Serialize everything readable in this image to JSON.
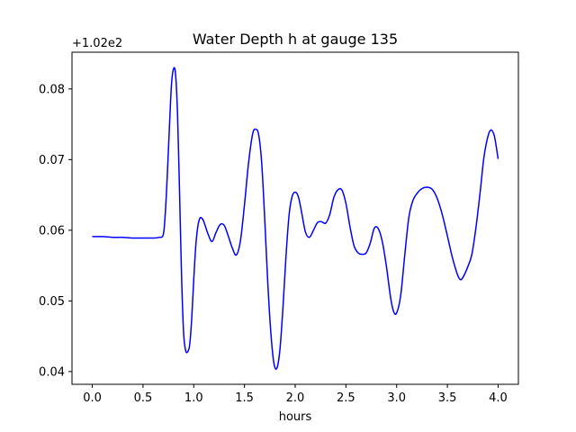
{
  "chart_data": {
    "type": "line",
    "title": "Water Depth h at gauge 135",
    "xlabel": "hours",
    "ylabel": "",
    "offset_label": "+1.02e2",
    "xlim": [
      -0.2,
      4.2
    ],
    "ylim": [
      0.0382,
      0.0852
    ],
    "xticks": [
      0.0,
      0.5,
      1.0,
      1.5,
      2.0,
      2.5,
      3.0,
      3.5,
      4.0
    ],
    "xtick_labels": [
      "0.0",
      "0.5",
      "1.0",
      "1.5",
      "2.0",
      "2.5",
      "3.0",
      "3.5",
      "4.0"
    ],
    "yticks": [
      0.04,
      0.05,
      0.06,
      0.07,
      0.08
    ],
    "ytick_labels": [
      "0.04",
      "0.05",
      "0.06",
      "0.07",
      "0.08"
    ],
    "grid": false,
    "line_color": "#0000ff",
    "series": [
      {
        "x": [
          0.0,
          0.1,
          0.2,
          0.3,
          0.4,
          0.5,
          0.6,
          0.66,
          0.7,
          0.72,
          0.74,
          0.76,
          0.78,
          0.8,
          0.82,
          0.84,
          0.86,
          0.88,
          0.9,
          0.92,
          0.94,
          0.96,
          0.98,
          1.0,
          1.02,
          1.04,
          1.06,
          1.08,
          1.1,
          1.14,
          1.18,
          1.22,
          1.26,
          1.3,
          1.34,
          1.38,
          1.42,
          1.46,
          1.5,
          1.54,
          1.58,
          1.61,
          1.64,
          1.67,
          1.7,
          1.73,
          1.76,
          1.79,
          1.82,
          1.85,
          1.88,
          1.91,
          1.94,
          1.97,
          2.0,
          2.03,
          2.06,
          2.1,
          2.14,
          2.18,
          2.22,
          2.26,
          2.3,
          2.34,
          2.38,
          2.42,
          2.46,
          2.5,
          2.54,
          2.58,
          2.62,
          2.66,
          2.7,
          2.74,
          2.78,
          2.82,
          2.86,
          2.9,
          2.94,
          2.97,
          3.0,
          3.04,
          3.08,
          3.12,
          3.16,
          3.2,
          3.25,
          3.3,
          3.35,
          3.4,
          3.45,
          3.5,
          3.55,
          3.6,
          3.63,
          3.66,
          3.7,
          3.74,
          3.78,
          3.82,
          3.86,
          3.9,
          3.93,
          3.96,
          3.98,
          4.0
        ],
        "y": [
          0.0591,
          0.0591,
          0.059,
          0.059,
          0.0589,
          0.0589,
          0.0589,
          0.059,
          0.0594,
          0.0625,
          0.068,
          0.0745,
          0.0805,
          0.0828,
          0.0822,
          0.0765,
          0.0655,
          0.0535,
          0.0455,
          0.043,
          0.0428,
          0.0438,
          0.0475,
          0.053,
          0.0578,
          0.0605,
          0.0617,
          0.0617,
          0.0612,
          0.0595,
          0.0584,
          0.0597,
          0.0608,
          0.0607,
          0.0592,
          0.0575,
          0.0565,
          0.0585,
          0.0636,
          0.0695,
          0.0736,
          0.0743,
          0.0735,
          0.0695,
          0.0615,
          0.0525,
          0.0455,
          0.0412,
          0.0405,
          0.0432,
          0.0492,
          0.0565,
          0.0622,
          0.0648,
          0.0654,
          0.0648,
          0.0628,
          0.0598,
          0.059,
          0.06,
          0.0611,
          0.0612,
          0.061,
          0.0622,
          0.0646,
          0.0657,
          0.0657,
          0.0638,
          0.0605,
          0.0578,
          0.0568,
          0.0566,
          0.0568,
          0.0582,
          0.0603,
          0.0602,
          0.0583,
          0.0548,
          0.0505,
          0.0485,
          0.0483,
          0.0508,
          0.0565,
          0.0618,
          0.0642,
          0.0652,
          0.0659,
          0.0661,
          0.0658,
          0.0645,
          0.0622,
          0.0592,
          0.0561,
          0.0537,
          0.053,
          0.0535,
          0.0548,
          0.0565,
          0.0602,
          0.065,
          0.0703,
          0.0733,
          0.0742,
          0.0735,
          0.072,
          0.0701
        ]
      }
    ]
  }
}
